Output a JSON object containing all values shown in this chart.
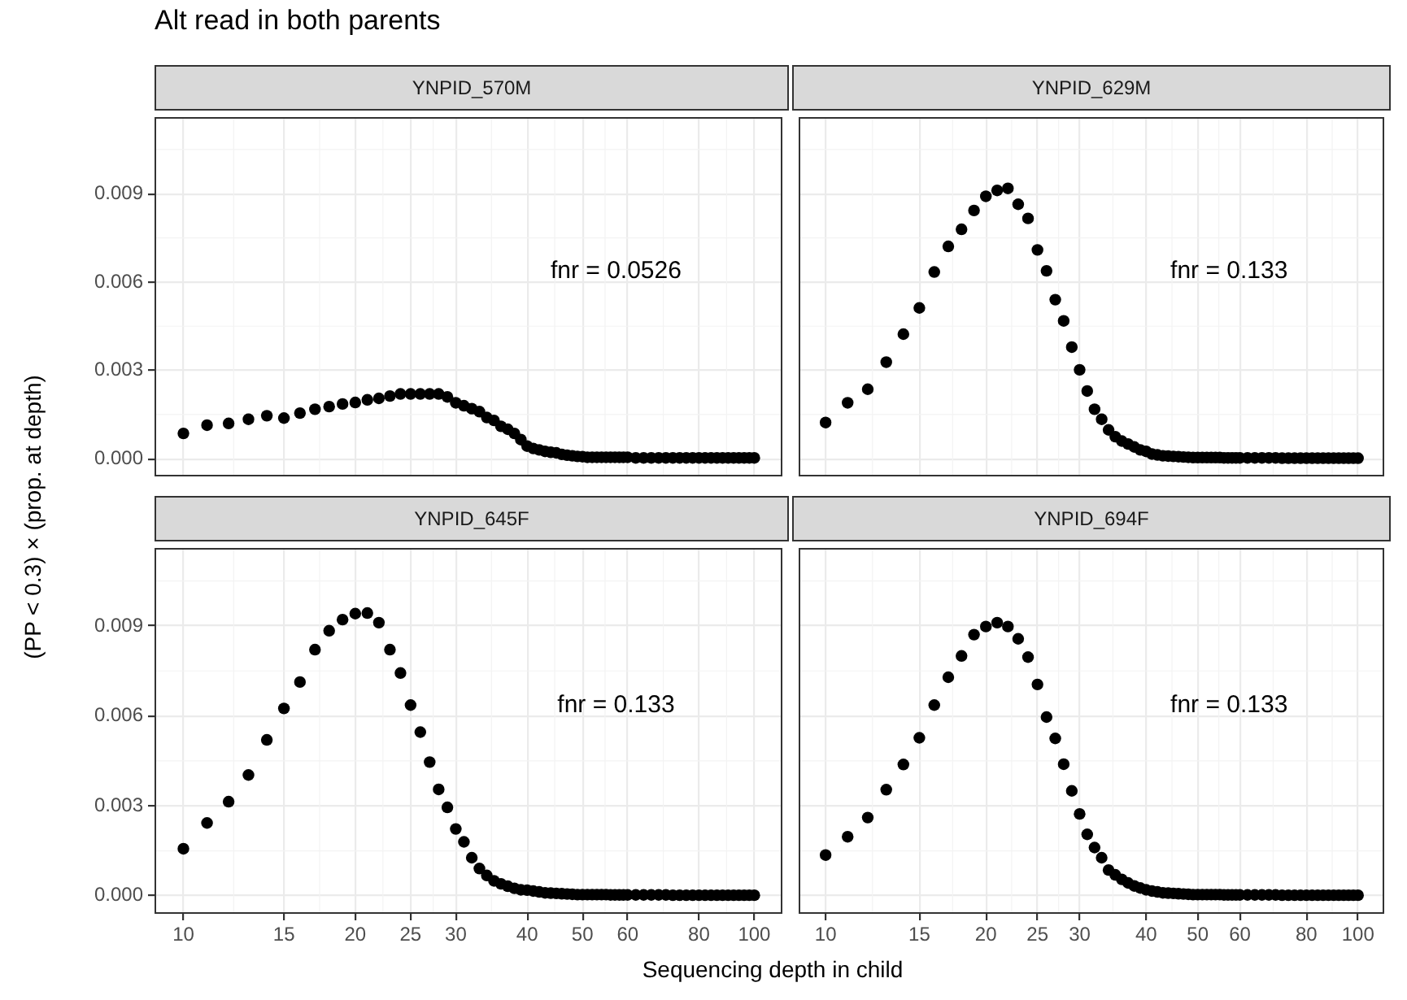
{
  "chart_data": [
    {
      "type": "scatter",
      "title": "Alt read in both parents",
      "subtitle": "YNPID_570M",
      "ylabel": "(PP < 0.3) × (prop. at depth)",
      "log": "x",
      "grid": true,
      "marker": "circle",
      "tick_labels": "y",
      "annotations": [
        "fnr = 0.0526"
      ],
      "xlim": [
        8.9,
        112
      ],
      "xticks": [
        10,
        15,
        20,
        25,
        30,
        40,
        50,
        60,
        80,
        100
      ],
      "ylim": [
        -0.0006,
        0.0116
      ],
      "yticks": [
        {
          "value": 0,
          "label": "0.000"
        },
        {
          "value": 0.003,
          "label": "0.003"
        },
        {
          "value": 0.006,
          "label": "0.006"
        },
        {
          "value": 0.009,
          "label": "0.009"
        }
      ],
      "x": [
        10,
        11,
        12,
        13,
        14,
        15,
        16,
        17,
        18,
        19,
        20,
        21,
        22,
        23,
        24,
        25,
        26,
        27,
        28,
        29,
        30,
        31,
        32,
        33,
        34,
        35,
        36,
        37,
        38,
        39,
        40,
        41,
        42,
        43,
        44,
        45,
        46,
        47,
        48,
        49,
        50,
        51,
        52,
        53,
        54,
        55,
        56,
        57,
        58,
        59,
        60,
        62,
        64,
        66,
        68,
        70,
        72,
        74,
        76,
        78,
        80,
        82,
        84,
        86,
        88,
        90,
        92,
        94,
        96,
        98,
        100
      ],
      "series": [
        {
          "color": "#000000",
          "values": [
            0.00086,
            0.00114,
            0.0012,
            0.00134,
            0.00146,
            0.00138,
            0.00155,
            0.00168,
            0.00177,
            0.00186,
            0.00191,
            0.002,
            0.00205,
            0.00213,
            0.0022,
            0.0022,
            0.0022,
            0.0022,
            0.0022,
            0.0021,
            0.0019,
            0.0018,
            0.0017,
            0.0016,
            0.0014,
            0.0013,
            0.0011,
            0.001,
            0.00086,
            0.00065,
            0.00043,
            0.00035,
            0.0003,
            0.00025,
            0.00022,
            0.0002,
            0.00015,
            0.00012,
            0.0001,
            8e-05,
            7e-05,
            5e-05,
            5e-05,
            5e-05,
            5e-05,
            5e-05,
            5e-05,
            5e-05,
            5e-05,
            5e-05,
            5e-05,
            3e-05,
            3e-05,
            3e-05,
            3e-05,
            3e-05,
            3e-05,
            3e-05,
            3e-05,
            3e-05,
            3e-05,
            3e-05,
            3e-05,
            3e-05,
            3e-05,
            3e-05,
            3e-05,
            3e-05,
            3e-05,
            3e-05,
            3e-05
          ]
        }
      ]
    },
    {
      "type": "scatter",
      "subtitle": "YNPID_629M",
      "log": "x",
      "grid": true,
      "marker": "circle",
      "tick_labels": false,
      "annotations": [
        "fnr = 0.133"
      ],
      "xlim": [
        8.9,
        112
      ],
      "xticks": [
        10,
        15,
        20,
        25,
        30,
        40,
        50,
        60,
        80,
        100
      ],
      "ylim": [
        -0.0006,
        0.0116
      ],
      "yticks": [
        0,
        0.003,
        0.006,
        0.009
      ],
      "x": [
        10,
        11,
        12,
        13,
        14,
        15,
        16,
        17,
        18,
        19,
        20,
        21,
        22,
        23,
        24,
        25,
        26,
        27,
        28,
        29,
        30,
        31,
        32,
        33,
        34,
        35,
        36,
        37,
        38,
        39,
        40,
        41,
        42,
        43,
        44,
        45,
        46,
        47,
        48,
        49,
        50,
        51,
        52,
        53,
        54,
        55,
        56,
        57,
        58,
        59,
        60,
        62,
        64,
        66,
        68,
        70,
        72,
        74,
        76,
        78,
        80,
        82,
        84,
        86,
        88,
        90,
        92,
        94,
        96,
        98,
        100
      ],
      "series": [
        {
          "color": "#000000",
          "values": [
            0.00123,
            0.0019,
            0.00236,
            0.00328,
            0.00423,
            0.00512,
            0.00634,
            0.00721,
            0.00779,
            0.00843,
            0.00891,
            0.00911,
            0.00918,
            0.00864,
            0.00816,
            0.00709,
            0.00638,
            0.0054,
            0.00468,
            0.00379,
            0.00302,
            0.0023,
            0.00168,
            0.00134,
            0.00098,
            0.00075,
            0.0006,
            0.0005,
            0.0004,
            0.0003,
            0.00025,
            0.00016,
            0.00013,
            0.0001,
            9e-05,
            8e-05,
            7e-05,
            6e-05,
            5e-05,
            4e-05,
            4e-05,
            4e-05,
            4e-05,
            4e-05,
            4e-05,
            4e-05,
            3e-05,
            3e-05,
            3e-05,
            3e-05,
            3e-05,
            3e-05,
            3e-05,
            3e-05,
            3e-05,
            3e-05,
            2e-05,
            2e-05,
            2e-05,
            2e-05,
            2e-05,
            2e-05,
            2e-05,
            2e-05,
            2e-05,
            2e-05,
            2e-05,
            2e-05,
            2e-05,
            2e-05,
            2e-05
          ]
        }
      ]
    },
    {
      "type": "scatter",
      "subtitle": "YNPID_645F",
      "xlabel": "Sequencing depth in child",
      "log": "x",
      "grid": true,
      "marker": "circle",
      "annotations": [
        "fnr = 0.133"
      ],
      "xlim": [
        8.9,
        112
      ],
      "xticks": [
        10,
        15,
        20,
        25,
        30,
        40,
        50,
        60,
        80,
        100
      ],
      "ylim": [
        -0.0006,
        0.0116
      ],
      "yticks": [
        {
          "value": 0,
          "label": "0.000"
        },
        {
          "value": 0.003,
          "label": "0.003"
        },
        {
          "value": 0.006,
          "label": "0.006"
        },
        {
          "value": 0.009,
          "label": "0.009"
        }
      ],
      "x": [
        10,
        11,
        12,
        13,
        14,
        15,
        16,
        17,
        18,
        19,
        20,
        21,
        22,
        23,
        24,
        25,
        26,
        27,
        28,
        29,
        30,
        31,
        32,
        33,
        34,
        35,
        36,
        37,
        38,
        39,
        40,
        41,
        42,
        43,
        44,
        45,
        46,
        47,
        48,
        49,
        50,
        51,
        52,
        53,
        54,
        55,
        56,
        57,
        58,
        59,
        60,
        62,
        64,
        66,
        68,
        70,
        72,
        74,
        76,
        78,
        80,
        82,
        84,
        86,
        88,
        90,
        92,
        94,
        96,
        98,
        100
      ],
      "series": [
        {
          "color": "#000000",
          "values": [
            0.00157,
            0.00243,
            0.00314,
            0.00403,
            0.0052,
            0.00625,
            0.00713,
            0.00821,
            0.00884,
            0.00921,
            0.00941,
            0.00943,
            0.00911,
            0.00821,
            0.00743,
            0.00636,
            0.00546,
            0.00446,
            0.00355,
            0.00295,
            0.00223,
            0.0018,
            0.00127,
            0.00091,
            0.00068,
            0.0005,
            0.0004,
            0.00032,
            0.00025,
            0.0002,
            0.00019,
            0.00016,
            0.00013,
            0.0001,
            9e-05,
            8e-05,
            7e-05,
            6e-05,
            5e-05,
            4e-05,
            4e-05,
            4e-05,
            4e-05,
            4e-05,
            4e-05,
            4e-05,
            3e-05,
            3e-05,
            3e-05,
            3e-05,
            3e-05,
            3e-05,
            3e-05,
            3e-05,
            3e-05,
            3e-05,
            2e-05,
            2e-05,
            2e-05,
            2e-05,
            2e-05,
            2e-05,
            2e-05,
            2e-05,
            2e-05,
            2e-05,
            2e-05,
            2e-05,
            2e-05,
            2e-05,
            2e-05
          ]
        }
      ]
    },
    {
      "type": "scatter",
      "subtitle": "YNPID_694F",
      "log": "x",
      "grid": true,
      "marker": "circle",
      "tick_labels": "x",
      "annotations": [
        "fnr = 0.133"
      ],
      "xlim": [
        8.9,
        112
      ],
      "xticks": [
        10,
        15,
        20,
        25,
        30,
        40,
        50,
        60,
        80,
        100
      ],
      "ylim": [
        -0.0006,
        0.0116
      ],
      "yticks": [
        0,
        0.003,
        0.006,
        0.009
      ],
      "x": [
        10,
        11,
        12,
        13,
        14,
        15,
        16,
        17,
        18,
        19,
        20,
        21,
        22,
        23,
        24,
        25,
        26,
        27,
        28,
        29,
        30,
        31,
        32,
        33,
        34,
        35,
        36,
        37,
        38,
        39,
        40,
        41,
        42,
        43,
        44,
        45,
        46,
        47,
        48,
        49,
        50,
        51,
        52,
        53,
        54,
        55,
        56,
        57,
        58,
        59,
        60,
        62,
        64,
        66,
        68,
        70,
        72,
        74,
        76,
        78,
        80,
        82,
        84,
        86,
        88,
        90,
        92,
        94,
        96,
        98,
        100
      ],
      "series": [
        {
          "color": "#000000",
          "values": [
            0.00136,
            0.00197,
            0.00261,
            0.00354,
            0.00438,
            0.00527,
            0.00636,
            0.00729,
            0.008,
            0.00871,
            0.00898,
            0.00911,
            0.00898,
            0.00857,
            0.00796,
            0.00705,
            0.00596,
            0.00525,
            0.00439,
            0.0035,
            0.00273,
            0.00205,
            0.00161,
            0.00127,
            0.00086,
            0.0007,
            0.00055,
            0.00043,
            0.00033,
            0.00026,
            0.0002,
            0.00016,
            0.00013,
            0.0001,
            9e-05,
            8e-05,
            7e-05,
            6e-05,
            5e-05,
            4e-05,
            4e-05,
            4e-05,
            4e-05,
            4e-05,
            4e-05,
            4e-05,
            3e-05,
            3e-05,
            3e-05,
            3e-05,
            3e-05,
            3e-05,
            3e-05,
            3e-05,
            3e-05,
            3e-05,
            2e-05,
            2e-05,
            2e-05,
            2e-05,
            2e-05,
            2e-05,
            2e-05,
            2e-05,
            2e-05,
            2e-05,
            2e-05,
            2e-05,
            2e-05,
            2e-05,
            2e-05
          ]
        }
      ]
    }
  ]
}
